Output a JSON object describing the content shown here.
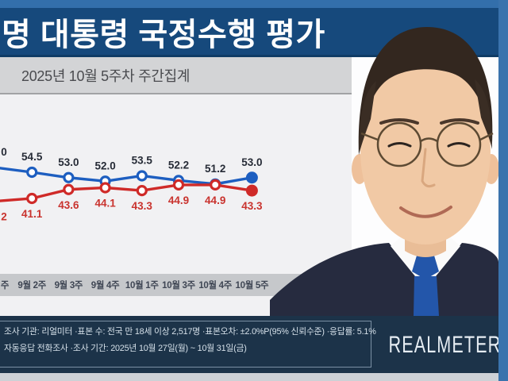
{
  "header": {
    "title": "명 대통령 국정수행 평가"
  },
  "subheader": {
    "text": "2025년 10월 5주차 주간집계"
  },
  "chart_data": {
    "type": "line",
    "note": "leftmost data column is clipped at the image edge; only label fragments visible",
    "categories": [
      "주",
      "9월 2주",
      "9월 3주",
      "9월 4주",
      "10월 1주",
      "10월 3주",
      "10월 4주",
      "10월 5주"
    ],
    "series": [
      {
        "name": "blue-line-top",
        "color": "#1d5ec0",
        "values": [
          null,
          54.5,
          53.0,
          52.0,
          53.5,
          52.2,
          51.2,
          53.0
        ],
        "labels": [
          "0",
          "54.5",
          "53.0",
          "52.0",
          "53.5",
          "52.2",
          "51.2",
          "53.0"
        ]
      },
      {
        "name": "red-line-bottom",
        "color": "#cf2a28",
        "values": [
          null,
          41.1,
          43.6,
          44.1,
          43.3,
          44.9,
          44.9,
          43.3
        ],
        "labels": [
          "2",
          "41.1",
          "43.6",
          "44.1",
          "43.3",
          "44.9",
          "44.9",
          "43.3"
        ]
      }
    ],
    "legend": "none visible",
    "grid": "off"
  },
  "colors": {
    "title_bar": "#16497c",
    "frame_blue": "#3a73ad",
    "footer_navy": "#1c3349",
    "blue_series": "#1d5ec0",
    "red_series": "#cf2a28",
    "blue_value_label": "#262b36",
    "red_value_label": "#c9332e",
    "axis_label": "#3f4654"
  },
  "footer": {
    "line1": "조사 기관: 리얼미터 ·표본 수: 전국 만 18세 이상 2,517명 ·표본오차: ±2.0%P(95% 신뢰수준) ·응답률: 5.1%",
    "line2": "자동응답 전화조사 ·조사 기간: 2025년 10월 27일(월) ~ 10월 31일(금)",
    "logo": "REALMETER"
  }
}
